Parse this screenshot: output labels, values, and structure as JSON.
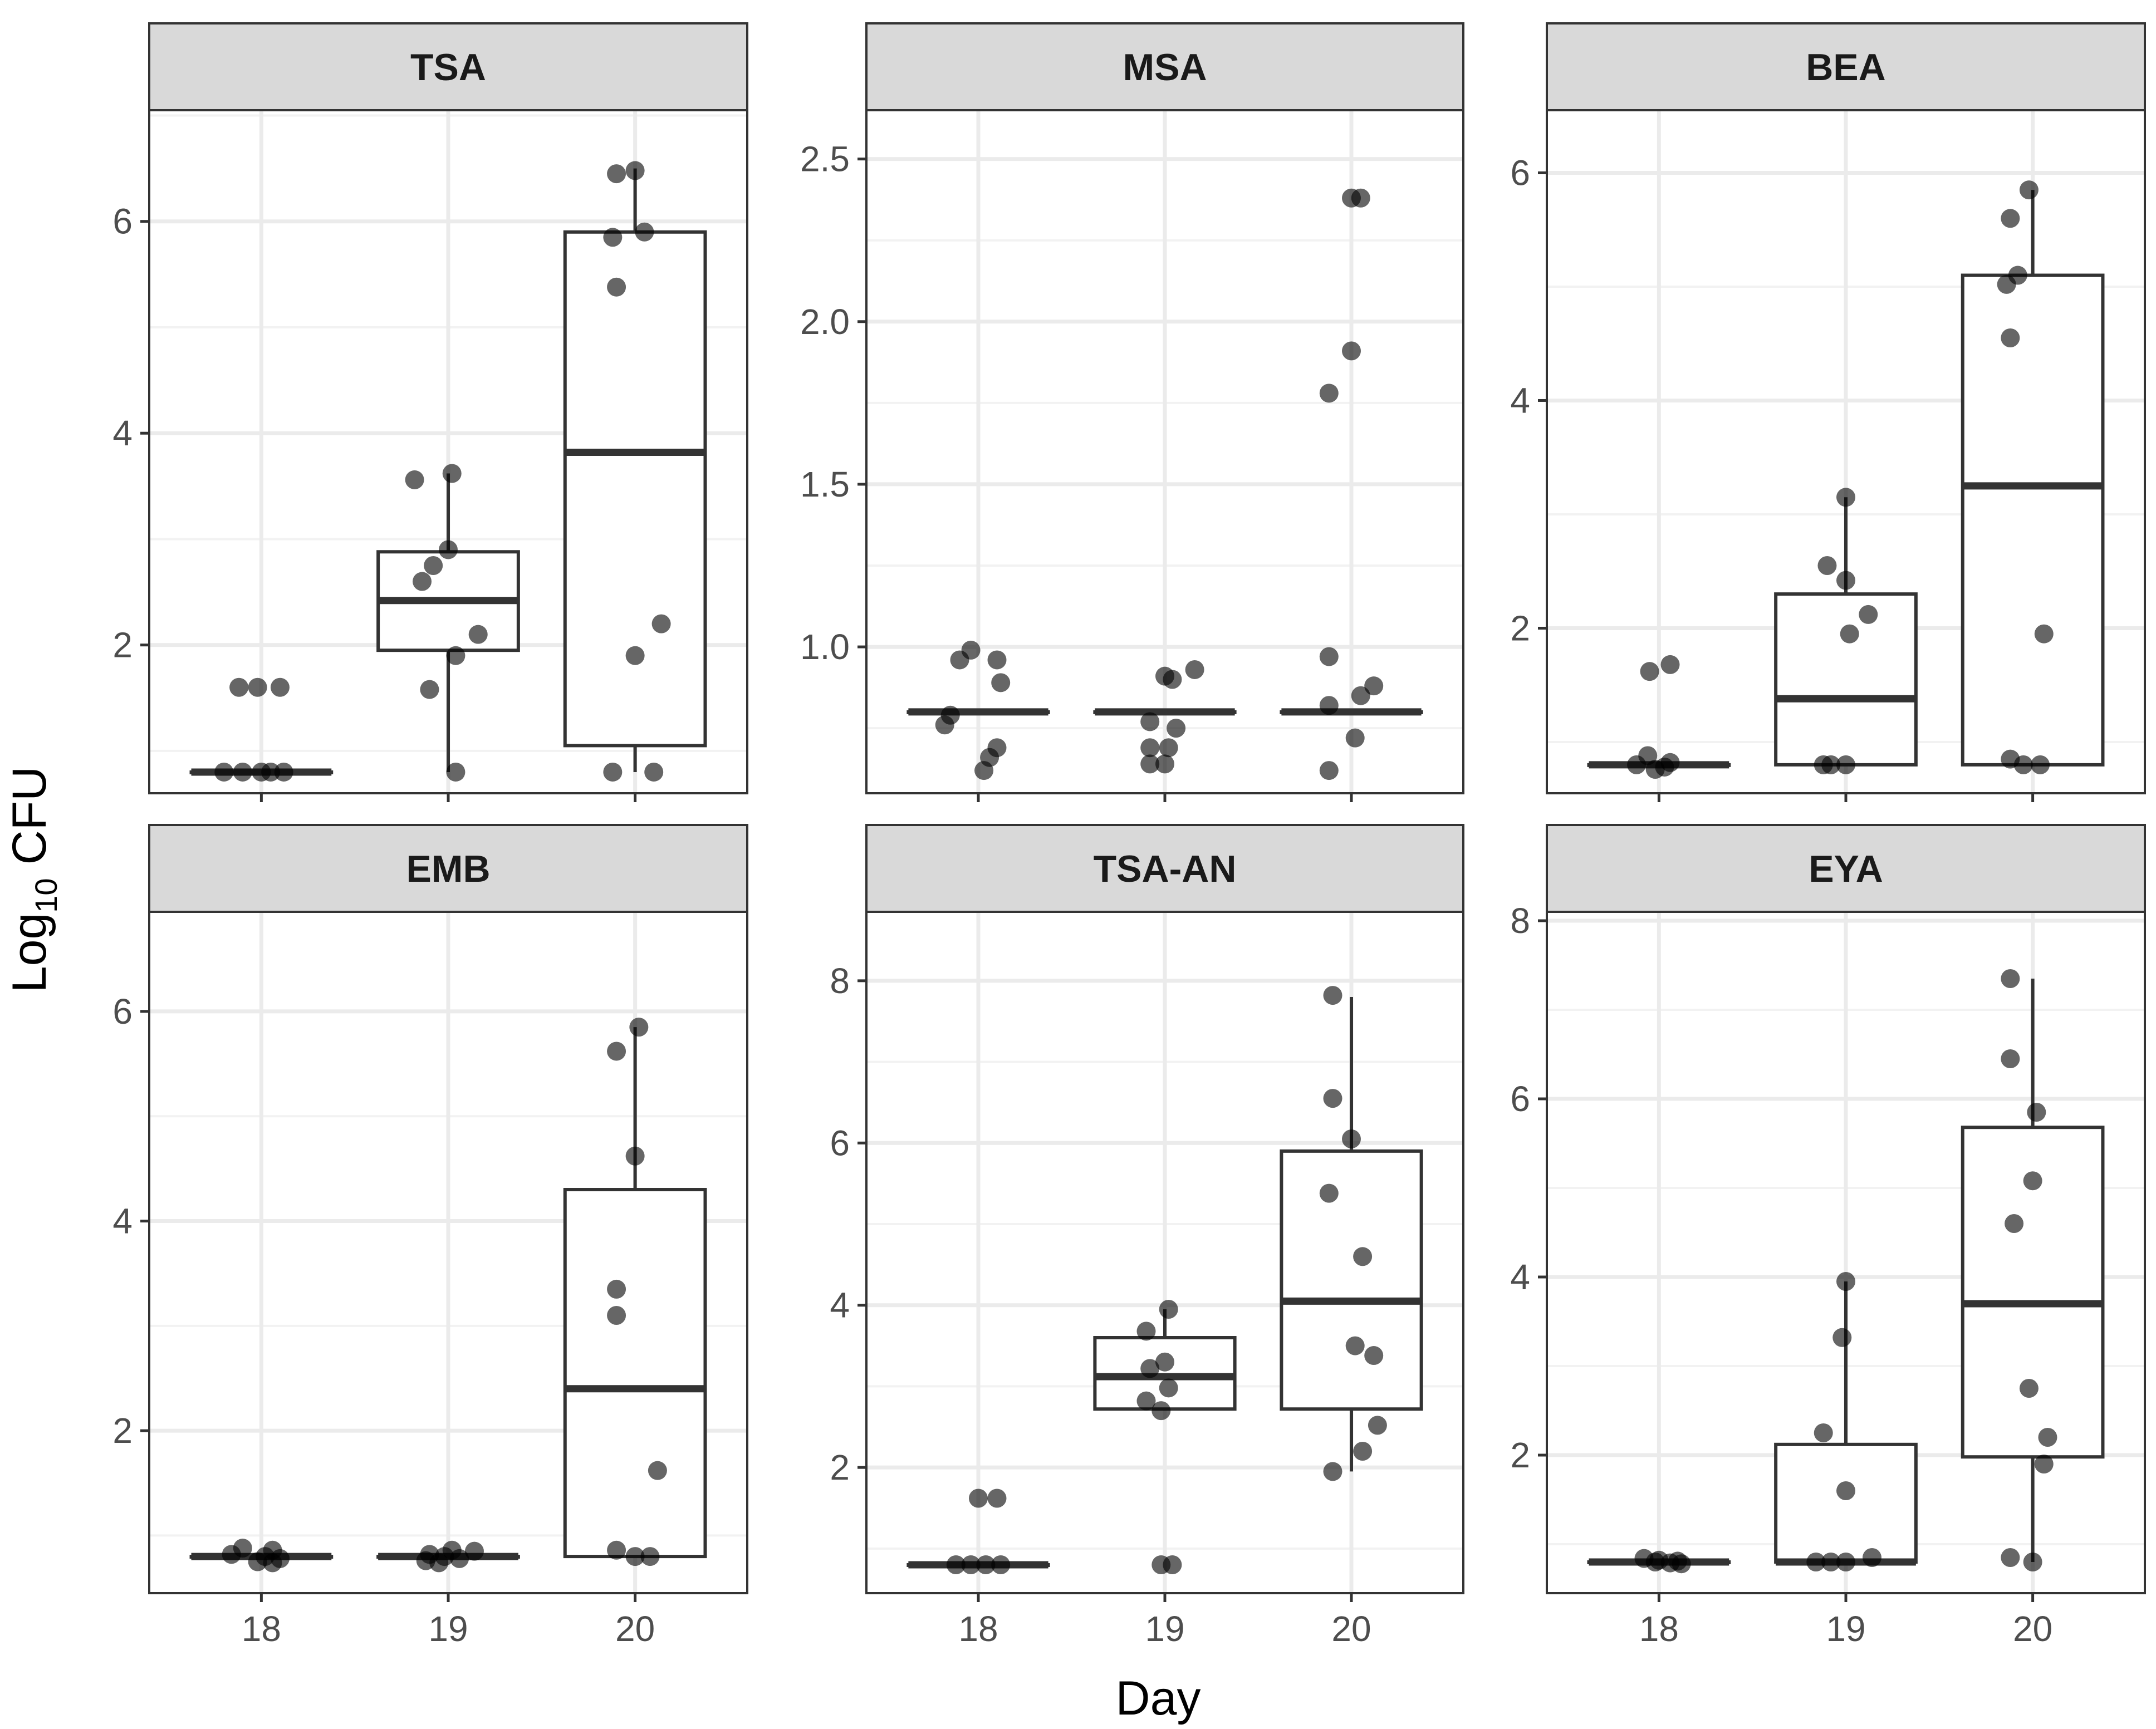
{
  "chart_data": {
    "type": "boxplot",
    "xlabel": "Day",
    "ylabel": {
      "base": "Log",
      "subscript": "10",
      "rest": " CFU"
    },
    "categories": [
      "18",
      "19",
      "20"
    ],
    "panels": [
      {
        "title": "TSA",
        "ylim": [
          0.6,
          7.05
        ],
        "yticks": [
          2,
          4,
          6
        ],
        "boxes": [
          {
            "q1": 0.8,
            "median": 0.8,
            "q3": 0.8,
            "whisker_low": 0.8,
            "whisker_high": 0.8
          },
          {
            "q1": 1.95,
            "median": 2.42,
            "q3": 2.88,
            "whisker_low": 0.8,
            "whisker_high": 3.62
          },
          {
            "q1": 1.05,
            "median": 3.82,
            "q3": 5.9,
            "whisker_low": 0.8,
            "whisker_high": 6.5
          }
        ],
        "points": [
          {
            "x": "18",
            "y": 1.6,
            "jitter": -0.12
          },
          {
            "x": "18",
            "y": 1.6,
            "jitter": -0.02
          },
          {
            "x": "18",
            "y": 1.6,
            "jitter": 0.1
          },
          {
            "x": "18",
            "y": 0.8,
            "jitter": -0.2
          },
          {
            "x": "18",
            "y": 0.8,
            "jitter": -0.1
          },
          {
            "x": "18",
            "y": 0.8,
            "jitter": 0.0
          },
          {
            "x": "18",
            "y": 0.8,
            "jitter": 0.05
          },
          {
            "x": "18",
            "y": 0.8,
            "jitter": 0.12
          },
          {
            "x": "19",
            "y": 3.62,
            "jitter": 0.02
          },
          {
            "x": "19",
            "y": 3.56,
            "jitter": -0.18
          },
          {
            "x": "19",
            "y": 2.9,
            "jitter": 0.0
          },
          {
            "x": "19",
            "y": 2.75,
            "jitter": -0.08
          },
          {
            "x": "19",
            "y": 2.6,
            "jitter": -0.14
          },
          {
            "x": "19",
            "y": 2.1,
            "jitter": 0.16
          },
          {
            "x": "19",
            "y": 1.9,
            "jitter": 0.04
          },
          {
            "x": "19",
            "y": 1.58,
            "jitter": -0.1
          },
          {
            "x": "19",
            "y": 0.8,
            "jitter": 0.04
          },
          {
            "x": "20",
            "y": 6.45,
            "jitter": -0.1
          },
          {
            "x": "20",
            "y": 6.48,
            "jitter": 0.0
          },
          {
            "x": "20",
            "y": 5.85,
            "jitter": -0.12
          },
          {
            "x": "20",
            "y": 5.9,
            "jitter": 0.05
          },
          {
            "x": "20",
            "y": 5.38,
            "jitter": -0.1
          },
          {
            "x": "20",
            "y": 2.2,
            "jitter": 0.14
          },
          {
            "x": "20",
            "y": 1.9,
            "jitter": 0.0
          },
          {
            "x": "20",
            "y": 0.8,
            "jitter": -0.12
          },
          {
            "x": "20",
            "y": 0.8,
            "jitter": 0.1
          }
        ]
      },
      {
        "title": "MSA",
        "ylim": [
          0.55,
          2.65
        ],
        "yticks": [
          1.0,
          1.5,
          2.0,
          2.5
        ],
        "boxes": [
          {
            "q1": 0.8,
            "median": 0.8,
            "q3": 0.8,
            "whisker_low": 0.8,
            "whisker_high": 0.8
          },
          {
            "q1": 0.8,
            "median": 0.8,
            "q3": 0.8,
            "whisker_low": 0.8,
            "whisker_high": 0.8
          },
          {
            "q1": 0.8,
            "median": 0.8,
            "q3": 0.8,
            "whisker_low": 0.8,
            "whisker_high": 0.8
          }
        ],
        "points": [
          {
            "x": "18",
            "y": 0.99,
            "jitter": -0.04
          },
          {
            "x": "18",
            "y": 0.96,
            "jitter": -0.1
          },
          {
            "x": "18",
            "y": 0.96,
            "jitter": 0.1
          },
          {
            "x": "18",
            "y": 0.89,
            "jitter": 0.12
          },
          {
            "x": "18",
            "y": 0.79,
            "jitter": -0.15
          },
          {
            "x": "18",
            "y": 0.76,
            "jitter": -0.18
          },
          {
            "x": "18",
            "y": 0.69,
            "jitter": 0.1
          },
          {
            "x": "18",
            "y": 0.66,
            "jitter": 0.06
          },
          {
            "x": "18",
            "y": 0.62,
            "jitter": 0.03
          },
          {
            "x": "19",
            "y": 0.93,
            "jitter": 0.16
          },
          {
            "x": "19",
            "y": 0.91,
            "jitter": 0.0
          },
          {
            "x": "19",
            "y": 0.9,
            "jitter": 0.04
          },
          {
            "x": "19",
            "y": 0.77,
            "jitter": -0.08
          },
          {
            "x": "19",
            "y": 0.75,
            "jitter": 0.06
          },
          {
            "x": "19",
            "y": 0.69,
            "jitter": -0.08
          },
          {
            "x": "19",
            "y": 0.69,
            "jitter": 0.02
          },
          {
            "x": "19",
            "y": 0.64,
            "jitter": -0.08
          },
          {
            "x": "19",
            "y": 0.64,
            "jitter": 0.0
          },
          {
            "x": "20",
            "y": 2.38,
            "jitter": 0.0
          },
          {
            "x": "20",
            "y": 2.38,
            "jitter": 0.05
          },
          {
            "x": "20",
            "y": 1.91,
            "jitter": 0.0
          },
          {
            "x": "20",
            "y": 1.78,
            "jitter": -0.12
          },
          {
            "x": "20",
            "y": 0.97,
            "jitter": -0.12
          },
          {
            "x": "20",
            "y": 0.88,
            "jitter": 0.12
          },
          {
            "x": "20",
            "y": 0.85,
            "jitter": 0.05
          },
          {
            "x": "20",
            "y": 0.82,
            "jitter": -0.12
          },
          {
            "x": "20",
            "y": 0.72,
            "jitter": 0.02
          },
          {
            "x": "20",
            "y": 0.62,
            "jitter": -0.12
          }
        ]
      },
      {
        "title": "BEA",
        "ylim": [
          0.55,
          6.55
        ],
        "yticks": [
          2,
          4,
          6
        ],
        "boxes": [
          {
            "q1": 0.8,
            "median": 0.8,
            "q3": 0.8,
            "whisker_low": 0.8,
            "whisker_high": 0.8
          },
          {
            "q1": 0.8,
            "median": 1.38,
            "q3": 2.3,
            "whisker_low": 0.8,
            "whisker_high": 3.15
          },
          {
            "q1": 0.8,
            "median": 3.25,
            "q3": 5.1,
            "whisker_low": 0.8,
            "whisker_high": 5.85
          }
        ],
        "points": [
          {
            "x": "18",
            "y": 1.68,
            "jitter": 0.06
          },
          {
            "x": "18",
            "y": 1.62,
            "jitter": -0.05
          },
          {
            "x": "18",
            "y": 0.88,
            "jitter": -0.06
          },
          {
            "x": "18",
            "y": 0.82,
            "jitter": 0.06
          },
          {
            "x": "18",
            "y": 0.8,
            "jitter": -0.12
          },
          {
            "x": "18",
            "y": 0.78,
            "jitter": 0.03
          },
          {
            "x": "18",
            "y": 0.76,
            "jitter": -0.02
          },
          {
            "x": "19",
            "y": 3.15,
            "jitter": 0.0
          },
          {
            "x": "19",
            "y": 2.55,
            "jitter": -0.1
          },
          {
            "x": "19",
            "y": 2.42,
            "jitter": 0.0
          },
          {
            "x": "19",
            "y": 2.12,
            "jitter": 0.12
          },
          {
            "x": "19",
            "y": 1.95,
            "jitter": 0.02
          },
          {
            "x": "19",
            "y": 0.8,
            "jitter": -0.12
          },
          {
            "x": "19",
            "y": 0.8,
            "jitter": -0.08
          },
          {
            "x": "19",
            "y": 0.8,
            "jitter": 0.0
          },
          {
            "x": "20",
            "y": 5.85,
            "jitter": -0.02
          },
          {
            "x": "20",
            "y": 5.6,
            "jitter": -0.12
          },
          {
            "x": "20",
            "y": 5.1,
            "jitter": -0.08
          },
          {
            "x": "20",
            "y": 5.02,
            "jitter": -0.14
          },
          {
            "x": "20",
            "y": 4.55,
            "jitter": -0.12
          },
          {
            "x": "20",
            "y": 1.95,
            "jitter": 0.06
          },
          {
            "x": "20",
            "y": 0.85,
            "jitter": -0.12
          },
          {
            "x": "20",
            "y": 0.8,
            "jitter": -0.05
          },
          {
            "x": "20",
            "y": 0.8,
            "jitter": 0.04
          }
        ]
      },
      {
        "title": "EMB",
        "ylim": [
          0.45,
          6.95
        ],
        "yticks": [
          2,
          4,
          6
        ],
        "boxes": [
          {
            "q1": 0.8,
            "median": 0.8,
            "q3": 0.8,
            "whisker_low": 0.8,
            "whisker_high": 0.8
          },
          {
            "q1": 0.8,
            "median": 0.8,
            "q3": 0.8,
            "whisker_low": 0.8,
            "whisker_high": 0.8
          },
          {
            "q1": 0.8,
            "median": 2.4,
            "q3": 4.3,
            "whisker_low": 0.8,
            "whisker_high": 5.85
          }
        ],
        "points": [
          {
            "x": "18",
            "y": 0.88,
            "jitter": -0.1
          },
          {
            "x": "18",
            "y": 0.86,
            "jitter": 0.06
          },
          {
            "x": "18",
            "y": 0.82,
            "jitter": -0.16
          },
          {
            "x": "18",
            "y": 0.8,
            "jitter": 0.02
          },
          {
            "x": "18",
            "y": 0.78,
            "jitter": 0.1
          },
          {
            "x": "18",
            "y": 0.75,
            "jitter": -0.02
          },
          {
            "x": "18",
            "y": 0.74,
            "jitter": 0.06
          },
          {
            "x": "19",
            "y": 0.86,
            "jitter": 0.02
          },
          {
            "x": "19",
            "y": 0.85,
            "jitter": 0.14
          },
          {
            "x": "19",
            "y": 0.82,
            "jitter": -0.1
          },
          {
            "x": "19",
            "y": 0.8,
            "jitter": -0.02
          },
          {
            "x": "19",
            "y": 0.78,
            "jitter": 0.06
          },
          {
            "x": "19",
            "y": 0.76,
            "jitter": -0.12
          },
          {
            "x": "19",
            "y": 0.74,
            "jitter": -0.05
          },
          {
            "x": "20",
            "y": 5.85,
            "jitter": 0.02
          },
          {
            "x": "20",
            "y": 5.62,
            "jitter": -0.1
          },
          {
            "x": "20",
            "y": 4.62,
            "jitter": 0.0
          },
          {
            "x": "20",
            "y": 3.35,
            "jitter": -0.1
          },
          {
            "x": "20",
            "y": 3.1,
            "jitter": -0.1
          },
          {
            "x": "20",
            "y": 1.62,
            "jitter": 0.12
          },
          {
            "x": "20",
            "y": 0.86,
            "jitter": -0.1
          },
          {
            "x": "20",
            "y": 0.8,
            "jitter": 0.0
          },
          {
            "x": "20",
            "y": 0.8,
            "jitter": 0.08
          }
        ]
      },
      {
        "title": "TSA-AN",
        "ylim": [
          0.45,
          8.85
        ],
        "yticks": [
          2,
          4,
          6,
          8
        ],
        "boxes": [
          {
            "q1": 0.8,
            "median": 0.8,
            "q3": 0.8,
            "whisker_low": 0.8,
            "whisker_high": 0.8
          },
          {
            "q1": 2.72,
            "median": 3.12,
            "q3": 3.6,
            "whisker_low": 2.72,
            "whisker_high": 3.95
          },
          {
            "q1": 2.72,
            "median": 4.05,
            "q3": 5.9,
            "whisker_low": 1.95,
            "whisker_high": 7.8
          }
        ],
        "points": [
          {
            "x": "18",
            "y": 1.62,
            "jitter": 0.0
          },
          {
            "x": "18",
            "y": 1.62,
            "jitter": 0.1
          },
          {
            "x": "18",
            "y": 0.8,
            "jitter": -0.12
          },
          {
            "x": "18",
            "y": 0.8,
            "jitter": -0.04
          },
          {
            "x": "18",
            "y": 0.8,
            "jitter": 0.04
          },
          {
            "x": "18",
            "y": 0.8,
            "jitter": 0.12
          },
          {
            "x": "19",
            "y": 3.95,
            "jitter": 0.02
          },
          {
            "x": "19",
            "y": 3.68,
            "jitter": -0.1
          },
          {
            "x": "19",
            "y": 3.3,
            "jitter": 0.0
          },
          {
            "x": "19",
            "y": 3.22,
            "jitter": -0.08
          },
          {
            "x": "19",
            "y": 2.98,
            "jitter": 0.02
          },
          {
            "x": "19",
            "y": 2.82,
            "jitter": -0.1
          },
          {
            "x": "19",
            "y": 2.7,
            "jitter": -0.02
          },
          {
            "x": "19",
            "y": 0.8,
            "jitter": -0.02
          },
          {
            "x": "19",
            "y": 0.8,
            "jitter": 0.04
          },
          {
            "x": "20",
            "y": 7.82,
            "jitter": -0.1
          },
          {
            "x": "20",
            "y": 6.55,
            "jitter": -0.1
          },
          {
            "x": "20",
            "y": 6.05,
            "jitter": 0.0
          },
          {
            "x": "20",
            "y": 5.38,
            "jitter": -0.12
          },
          {
            "x": "20",
            "y": 4.6,
            "jitter": 0.06
          },
          {
            "x": "20",
            "y": 3.5,
            "jitter": 0.02
          },
          {
            "x": "20",
            "y": 3.38,
            "jitter": 0.12
          },
          {
            "x": "20",
            "y": 2.52,
            "jitter": 0.14
          },
          {
            "x": "20",
            "y": 2.2,
            "jitter": 0.06
          },
          {
            "x": "20",
            "y": 1.95,
            "jitter": -0.1
          }
        ]
      },
      {
        "title": "EYA",
        "ylim": [
          0.45,
          8.1
        ],
        "yticks": [
          2,
          4,
          6,
          8
        ],
        "boxes": [
          {
            "q1": 0.8,
            "median": 0.8,
            "q3": 0.8,
            "whisker_low": 0.8,
            "whisker_high": 0.8
          },
          {
            "q1": 0.8,
            "median": 0.8,
            "q3": 2.12,
            "whisker_low": 0.8,
            "whisker_high": 3.95
          },
          {
            "q1": 1.98,
            "median": 3.7,
            "q3": 5.68,
            "whisker_low": 0.8,
            "whisker_high": 7.35
          }
        ],
        "points": [
          {
            "x": "18",
            "y": 0.84,
            "jitter": -0.08
          },
          {
            "x": "18",
            "y": 0.82,
            "jitter": 0.0
          },
          {
            "x": "18",
            "y": 0.81,
            "jitter": 0.1
          },
          {
            "x": "18",
            "y": 0.8,
            "jitter": -0.02
          },
          {
            "x": "18",
            "y": 0.79,
            "jitter": 0.06
          },
          {
            "x": "18",
            "y": 0.78,
            "jitter": 0.12
          },
          {
            "x": "19",
            "y": 3.95,
            "jitter": 0.0
          },
          {
            "x": "19",
            "y": 3.32,
            "jitter": -0.02
          },
          {
            "x": "19",
            "y": 2.25,
            "jitter": -0.12
          },
          {
            "x": "19",
            "y": 1.6,
            "jitter": 0.0
          },
          {
            "x": "19",
            "y": 0.85,
            "jitter": 0.14
          },
          {
            "x": "19",
            "y": 0.8,
            "jitter": -0.16
          },
          {
            "x": "19",
            "y": 0.8,
            "jitter": -0.08
          },
          {
            "x": "19",
            "y": 0.8,
            "jitter": 0.0
          },
          {
            "x": "20",
            "y": 7.35,
            "jitter": -0.12
          },
          {
            "x": "20",
            "y": 6.45,
            "jitter": -0.12
          },
          {
            "x": "20",
            "y": 5.85,
            "jitter": 0.02
          },
          {
            "x": "20",
            "y": 5.08,
            "jitter": 0.0
          },
          {
            "x": "20",
            "y": 4.6,
            "jitter": -0.1
          },
          {
            "x": "20",
            "y": 2.75,
            "jitter": -0.02
          },
          {
            "x": "20",
            "y": 2.2,
            "jitter": 0.08
          },
          {
            "x": "20",
            "y": 1.9,
            "jitter": 0.06
          },
          {
            "x": "20",
            "y": 0.85,
            "jitter": -0.12
          },
          {
            "x": "20",
            "y": 0.8,
            "jitter": 0.0
          }
        ]
      }
    ]
  }
}
